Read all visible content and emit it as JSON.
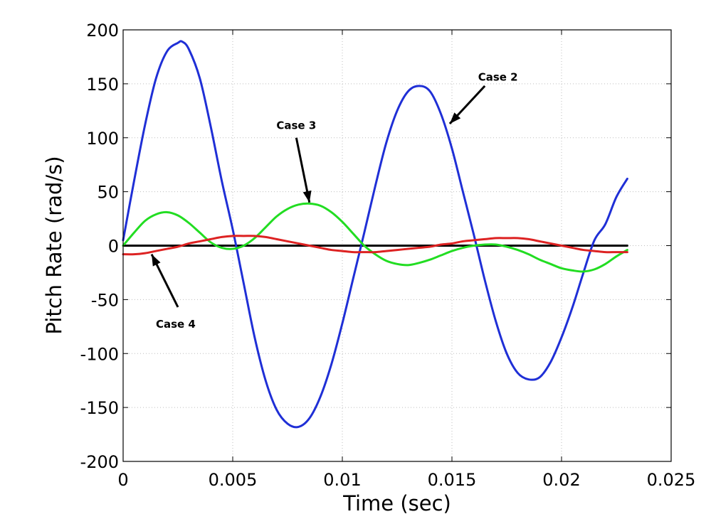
{
  "chart_data": {
    "type": "line",
    "title": "",
    "xlabel": "Time (sec)",
    "ylabel": "Pitch Rate (rad/s)",
    "xlim": [
      0,
      0.025
    ],
    "ylim": [
      -200,
      200
    ],
    "xticks": [
      0,
      0.005,
      0.01,
      0.015,
      0.02,
      0.025
    ],
    "xtick_labels": [
      "0",
      "0.005",
      "0.01",
      "0.015",
      "0.02",
      "0.025"
    ],
    "yticks": [
      -200,
      -150,
      -100,
      -50,
      0,
      50,
      100,
      150,
      200
    ],
    "ytick_labels": [
      "-200",
      "-150",
      "-100",
      "-50",
      "0",
      "50",
      "100",
      "150",
      "200"
    ],
    "grid": true,
    "series": [
      {
        "key": "case1",
        "color": "#000000",
        "x": [
          0,
          0.023
        ],
        "y": [
          0,
          0
        ]
      },
      {
        "key": "case2",
        "color": "#1f2fd6",
        "x": [
          0,
          0.0005,
          0.001,
          0.0015,
          0.002,
          0.0025,
          0.0027,
          0.003,
          0.0035,
          0.004,
          0.0045,
          0.005,
          0.0055,
          0.006,
          0.0065,
          0.007,
          0.0075,
          0.008,
          0.0085,
          0.009,
          0.0095,
          0.01,
          0.0105,
          0.011,
          0.0115,
          0.012,
          0.0125,
          0.013,
          0.0135,
          0.014,
          0.0145,
          0.015,
          0.0155,
          0.016,
          0.0165,
          0.017,
          0.0175,
          0.018,
          0.0185,
          0.019,
          0.0195,
          0.02,
          0.0205,
          0.021,
          0.0215,
          0.022,
          0.0225,
          0.023
        ],
        "y": [
          5,
          60,
          112,
          155,
          180,
          188,
          189,
          182,
          155,
          110,
          60,
          15,
          -35,
          -85,
          -125,
          -152,
          -165,
          -168,
          -160,
          -140,
          -110,
          -72,
          -30,
          12,
          55,
          95,
          125,
          143,
          148,
          143,
          122,
          90,
          50,
          10,
          -32,
          -70,
          -100,
          -118,
          -124,
          -122,
          -108,
          -85,
          -57,
          -25,
          5,
          20,
          45,
          62
        ]
      },
      {
        "key": "case3",
        "color": "#22dd22",
        "x": [
          0,
          0.0005,
          0.001,
          0.0015,
          0.002,
          0.0025,
          0.003,
          0.0035,
          0.004,
          0.0045,
          0.005,
          0.0055,
          0.006,
          0.0065,
          0.007,
          0.0075,
          0.008,
          0.0085,
          0.009,
          0.0095,
          0.01,
          0.0105,
          0.011,
          0.0115,
          0.012,
          0.0125,
          0.013,
          0.0135,
          0.014,
          0.0145,
          0.015,
          0.0155,
          0.016,
          0.0165,
          0.017,
          0.0175,
          0.018,
          0.0185,
          0.019,
          0.0195,
          0.02,
          0.0205,
          0.021,
          0.0215,
          0.022,
          0.0225,
          0.023
        ],
        "y": [
          0,
          12,
          23,
          29,
          31,
          28,
          21,
          12,
          3,
          -2,
          -3,
          0,
          7,
          17,
          27,
          34,
          38,
          39,
          37,
          31,
          22,
          11,
          0,
          -8,
          -14,
          -17,
          -18,
          -16,
          -13,
          -9,
          -5,
          -2,
          0,
          1,
          1,
          -1,
          -4,
          -8,
          -13,
          -17,
          -21,
          -23,
          -24,
          -22,
          -17,
          -10,
          -4
        ]
      },
      {
        "key": "case4",
        "color": "#dd2222",
        "x": [
          0,
          0.0005,
          0.001,
          0.0015,
          0.002,
          0.0025,
          0.003,
          0.0035,
          0.004,
          0.0045,
          0.005,
          0.0055,
          0.006,
          0.0065,
          0.007,
          0.0075,
          0.008,
          0.0085,
          0.009,
          0.0095,
          0.01,
          0.0105,
          0.011,
          0.0115,
          0.012,
          0.0125,
          0.013,
          0.0135,
          0.014,
          0.0145,
          0.015,
          0.0155,
          0.016,
          0.0165,
          0.017,
          0.0175,
          0.018,
          0.0185,
          0.019,
          0.0195,
          0.02,
          0.0205,
          0.021,
          0.0215,
          0.022,
          0.0225,
          0.023
        ],
        "y": [
          -8,
          -8,
          -7,
          -5,
          -3,
          -1,
          2,
          4,
          6,
          8,
          9,
          9,
          9,
          8,
          6,
          4,
          2,
          0,
          -2,
          -4,
          -5,
          -6,
          -6,
          -6,
          -5,
          -4,
          -3,
          -2,
          -1,
          1,
          2,
          4,
          5,
          6,
          7,
          7,
          7,
          6,
          4,
          2,
          0,
          -2,
          -4,
          -5,
          -6,
          -6,
          -6
        ]
      }
    ],
    "annotations": [
      {
        "text": "Case 2",
        "label_x": 0.0171,
        "label_y": 153,
        "arrow_from": [
          0.0165,
          148
        ],
        "arrow_to": [
          0.0149,
          113
        ]
      },
      {
        "text": "Case 3",
        "label_x": 0.0079,
        "label_y": 108,
        "arrow_from": [
          0.0079,
          100
        ],
        "arrow_to": [
          0.0085,
          40
        ]
      },
      {
        "text": "Case 4",
        "label_x": 0.0024,
        "label_y": -76,
        "arrow_from": [
          0.0025,
          -57
        ],
        "arrow_to": [
          0.0013,
          -8
        ]
      }
    ]
  }
}
